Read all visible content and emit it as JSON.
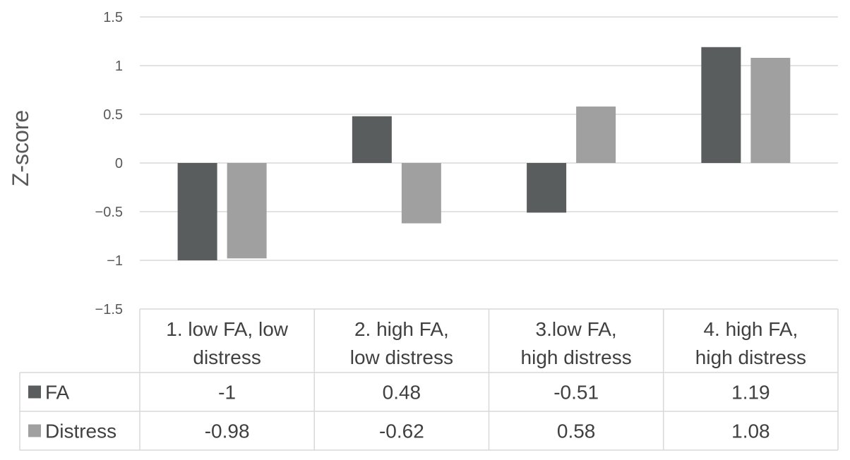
{
  "chart_data": {
    "type": "bar",
    "ylabel": "Z-score",
    "ylim": [
      -1.5,
      1.5
    ],
    "yticks": [
      1.5,
      1,
      0.5,
      0,
      -0.5,
      -1,
      -1.5
    ],
    "ytick_labels": [
      "1.5",
      "1",
      "0.5",
      "0",
      "−0.5",
      "−1",
      "−1.5"
    ],
    "grid": true,
    "legend": "data-table",
    "categories": [
      [
        "1. low FA, low",
        "distress"
      ],
      [
        "2. high FA,",
        "low distress"
      ],
      [
        "3.low FA,",
        "high distress"
      ],
      [
        "4. high FA,",
        "high distress"
      ]
    ],
    "series": [
      {
        "name": "FA",
        "color": "#595d5e",
        "values": [
          -1,
          0.48,
          -0.51,
          1.19
        ],
        "labels": [
          "-1",
          "0.48",
          "-0.51",
          "1.19"
        ]
      },
      {
        "name": "Distress",
        "color": "#a0a0a0",
        "values": [
          -0.98,
          -0.62,
          0.58,
          1.08
        ],
        "labels": [
          "-0.98",
          "-0.62",
          "0.58",
          "1.08"
        ]
      }
    ]
  }
}
